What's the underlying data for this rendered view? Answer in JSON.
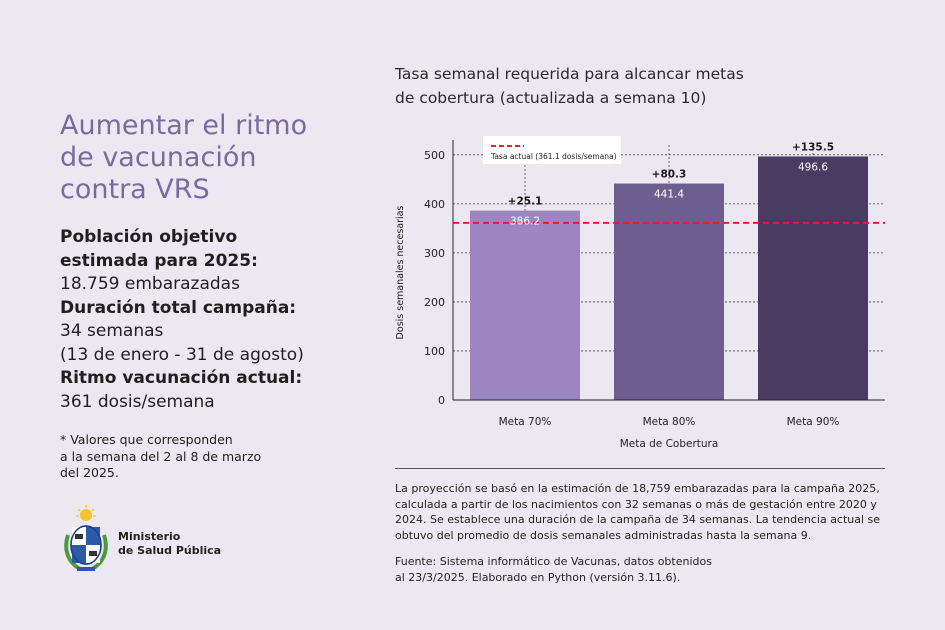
{
  "left": {
    "title_lines": [
      "Aumentar el ritmo",
      "de vacunación",
      "contra VRS"
    ],
    "items": [
      {
        "label_lines": [
          "Población objetivo",
          "estimada para 2025:"
        ],
        "value_lines": [
          "18.759 embarazadas"
        ]
      },
      {
        "label_lines": [
          "Duración total campaña:"
        ],
        "value_lines": [
          "34 semanas",
          "(13 de enero - 31 de agosto)"
        ]
      },
      {
        "label_lines": [
          "Ritmo vacunación actual:"
        ],
        "value_lines": [
          "361 dosis/semana"
        ]
      }
    ],
    "note_lines": [
      "* Valores que corresponden",
      "a la semana del 2 al 8 de marzo",
      "del 2025."
    ],
    "logo": {
      "line1": "Ministerio",
      "line2": "de Salud Pública"
    }
  },
  "chart_data": {
    "type": "bar",
    "title_lines": [
      "Tasa semanal requerida para alcancar metas",
      "de cobertura (actualizada a semana 10)"
    ],
    "categories": [
      "Meta 70%",
      "Meta 80%",
      "Meta 90%"
    ],
    "values": [
      386.2,
      441.4,
      496.6
    ],
    "value_labels": [
      "386.2",
      "441.4",
      "496.6"
    ],
    "increments": [
      "+25.1",
      "+80.3",
      "+135.5"
    ],
    "colors": [
      "#9b86c1",
      "#6e5e90",
      "#4a3b62"
    ],
    "reference_line": {
      "value": 361.1,
      "label": "Tasa actual (361.1 dosis/semana)",
      "color": "#e0202a"
    },
    "xlabel": "Meta de Cobertura",
    "ylabel": "Dosis semanales necesarias",
    "ylim": [
      0,
      520
    ],
    "yticks": [
      0,
      100,
      200,
      300,
      400,
      500
    ],
    "grid": true,
    "legend_position": "top-left"
  },
  "footer": {
    "paragraph1_lines": [
      "La proyección se basó en la estimación de 18,759 embarazadas para la campaña 2025,",
      "calculada a partir de los nacimientos con 32 semanas o más de gestación entre 2020 y",
      "2024. Se establece una duración de la campaña de 34 semanas. La tendencia actual se",
      "obtuvo del promedio de dosis semanales administradas hasta la semana 9."
    ],
    "paragraph2_lines": [
      "Fuente: Sistema informático de Vacunas, datos obtenidos",
      "al 23/3/2025. Elaborado en Python (versión 3.11.6)."
    ]
  }
}
